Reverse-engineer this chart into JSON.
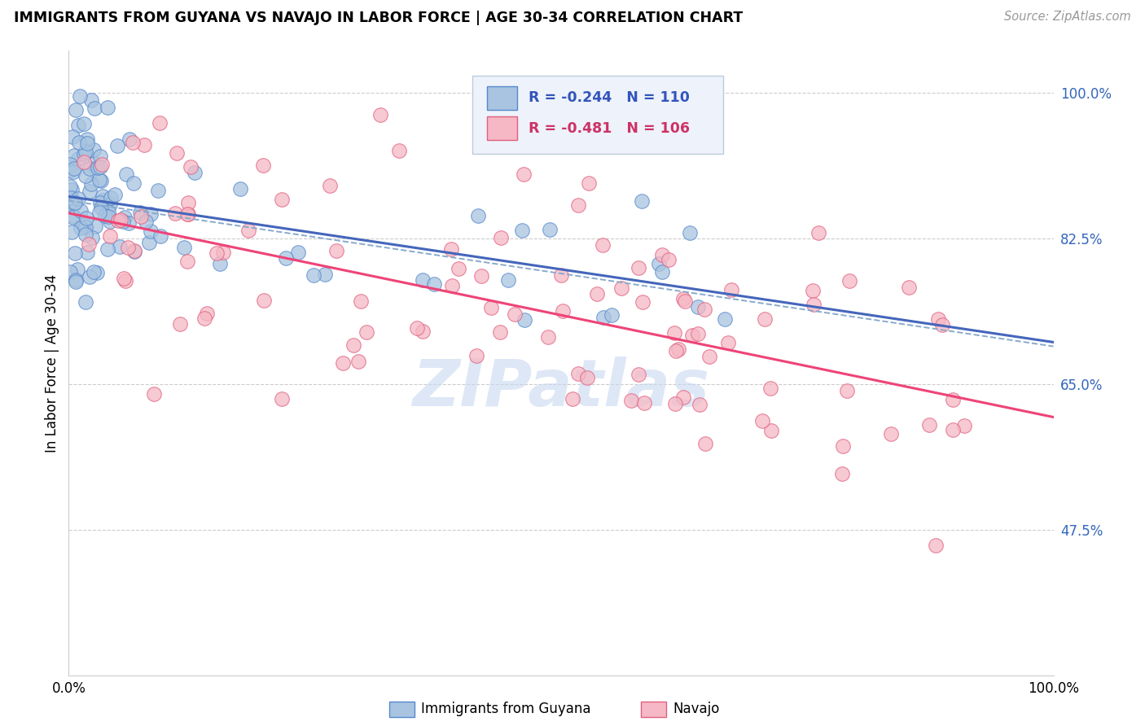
{
  "title": "IMMIGRANTS FROM GUYANA VS NAVAJO IN LABOR FORCE | AGE 30-34 CORRELATION CHART",
  "source_text": "Source: ZipAtlas.com",
  "ylabel": "In Labor Force | Age 30-34",
  "xlim": [
    0.0,
    1.0
  ],
  "ylim": [
    0.3,
    1.05
  ],
  "y_tick_values": [
    0.475,
    0.65,
    0.825,
    1.0
  ],
  "grid_color": "#cccccc",
  "background_color": "#ffffff",
  "blue_fill": "#a8c4e0",
  "blue_edge": "#5588cc",
  "pink_fill": "#f5b8c4",
  "pink_edge": "#e06080",
  "blue_line_color": "#4466bb",
  "pink_line_color": "#ee4477",
  "dashed_line_color": "#88aacc",
  "legend_box_color": "#eef2fa",
  "legend_box_edge": "#bbccdd",
  "watermark_text": "ZIPatlas",
  "watermark_color": "#c8d8f0",
  "blue_intercept": 0.875,
  "blue_slope": -0.175,
  "pink_intercept": 0.855,
  "pink_slope": -0.245,
  "blue_n": 110,
  "pink_n": 106,
  "blue_R": "-0.244",
  "pink_R": "-0.481"
}
